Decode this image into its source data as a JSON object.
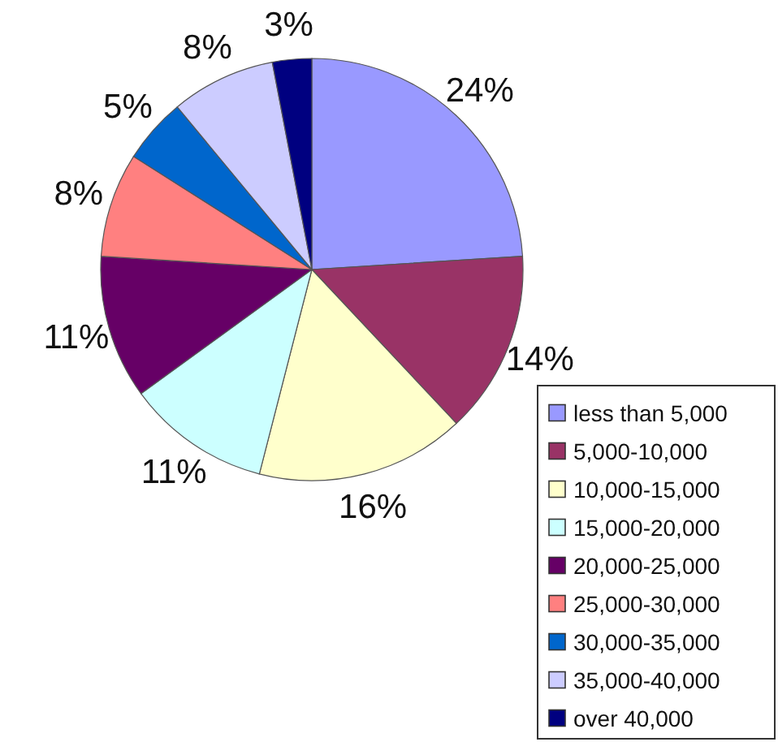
{
  "chart_data": {
    "type": "pie",
    "categories": [
      "less than 5,000",
      "5,000-10,000",
      "10,000-15,000",
      "15,000-20,000",
      "20,000-25,000",
      "25,000-30,000",
      "30,000-35,000",
      "35,000-40,000",
      "over 40,000"
    ],
    "values": [
      24,
      14,
      16,
      11,
      11,
      8,
      5,
      8,
      3
    ],
    "value_labels": [
      "24%",
      "14%",
      "16%",
      "11%",
      "11%",
      "8%",
      "5%",
      "8%",
      "3%"
    ],
    "colors": [
      "#9999ff",
      "#993366",
      "#ffffcc",
      "#ccffff",
      "#660066",
      "#ff8080",
      "#0066cc",
      "#ccccff",
      "#000080"
    ],
    "legend": "bottom right"
  }
}
